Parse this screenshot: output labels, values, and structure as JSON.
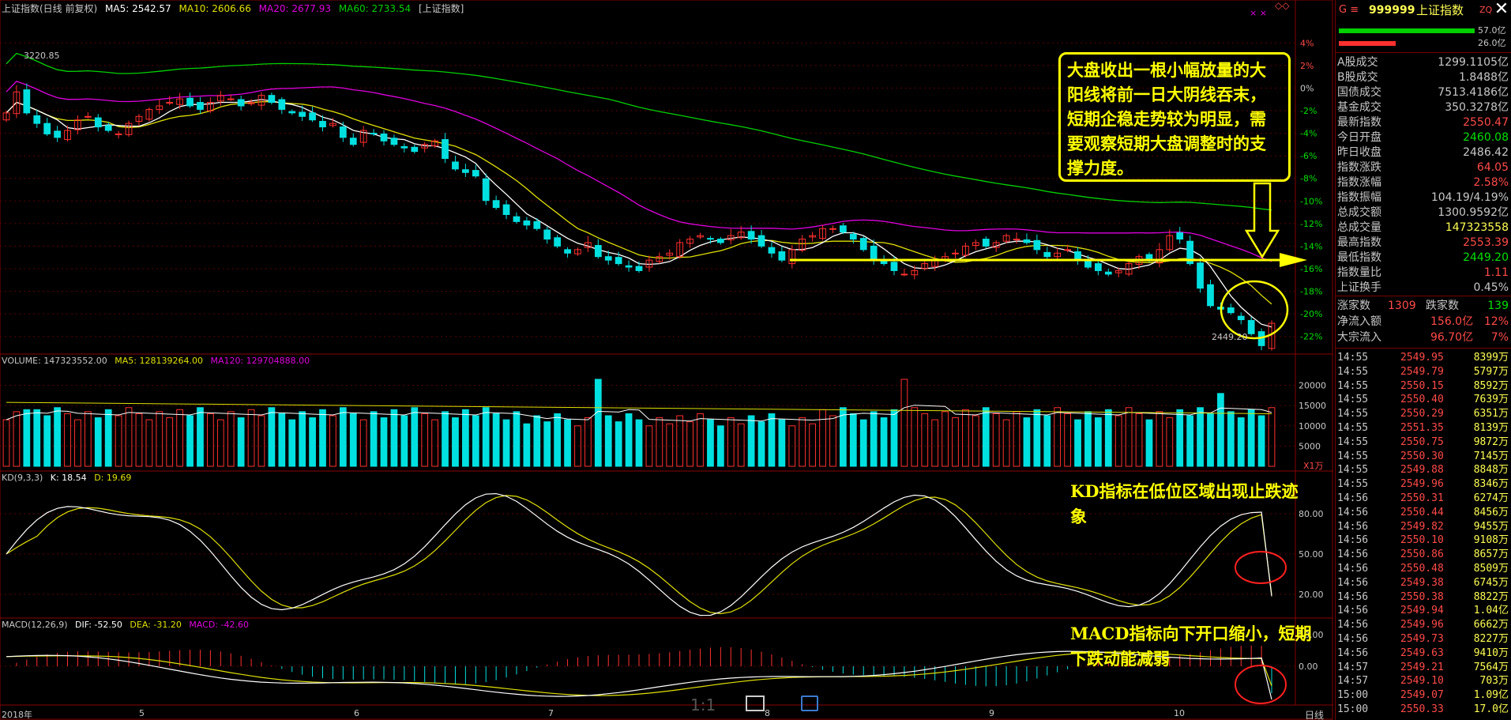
{
  "header": {
    "index_name": "上证指数(日线 前复权)",
    "ma5": "MA5: 2542.57",
    "ma10": "MA10: 2606.66",
    "ma20": "MA20: 2677.93",
    "ma60": "MA60: 2733.54",
    "tag": "[上证指数]",
    "top_left_value": "3220.85",
    "low_value": "2449.20"
  },
  "volume_header": {
    "volume": "VOLUME: 147323552.00",
    "ma5": "MA5: 128139264.00",
    "ma120": "MA120: 129704888.00",
    "unit": "X1万"
  },
  "kd_header": {
    "title": "KD(9,3,3)",
    "k": "K: 18.54",
    "d": "D: 19.69"
  },
  "macd_header": {
    "title": "MACD(12,26,9)",
    "dif": "DIF: -52.50",
    "dea": "DEA: -31.20",
    "macd": "MACD: -42.60"
  },
  "annotations": {
    "main": "大盘收出一根小幅放量的大阳线将前一日大阴线吞末，短期企稳走势较为明显，需要观察短期大盘调整时的支撑力度。",
    "kd": "KD指标在低位区域出现止跌迹象",
    "macd": "MACD指标向下开口缩小，短期下跌动能减弱"
  },
  "x_axis": {
    "labels": [
      "2018年",
      "5",
      "6",
      "7",
      "8",
      "9",
      "10"
    ],
    "period": "日线"
  },
  "bottom_icons": [
    "1:1",
    "fit-screen-icon",
    "settings-icon"
  ],
  "colors": {
    "up": "#ff3030",
    "down": "#00e0e0",
    "ma5": "#ffffff",
    "ma10": "#e0e000",
    "ma20": "#e000e0",
    "ma60": "#00d000",
    "highlight": "#ffff00"
  },
  "sidebar": {
    "code": "999999",
    "name": "上证指数",
    "top_label": "ZQ",
    "bar_vals": [
      "57.0亿",
      "26.0亿"
    ],
    "stats": [
      {
        "label": "A股成交",
        "value": "1299.1105亿",
        "color": "#c8c8c8"
      },
      {
        "label": "B股成交",
        "value": "1.8488亿",
        "color": "#c8c8c8"
      },
      {
        "label": "国债成交",
        "value": "7513.4186亿",
        "color": "#c8c8c8"
      },
      {
        "label": "基金成交",
        "value": "350.3278亿",
        "color": "#c8c8c8"
      },
      {
        "label": "最新指数",
        "value": "2550.47",
        "color": "#ff4a4a"
      },
      {
        "label": "今日开盘",
        "value": "2460.08",
        "color": "#00e000"
      },
      {
        "label": "昨日收盘",
        "value": "2486.42",
        "color": "#c8c8c8"
      },
      {
        "label": "指数涨跌",
        "value": "64.05",
        "color": "#ff4a4a"
      },
      {
        "label": "指数涨幅",
        "value": "2.58%",
        "color": "#ff4a4a"
      },
      {
        "label": "指数振幅",
        "value": "104.19/4.19%",
        "color": "#c8c8c8"
      },
      {
        "label": "总成交额",
        "value": "1300.9592亿",
        "color": "#c8c8c8"
      },
      {
        "label": "总成交量",
        "value": "147323558",
        "color": "#ffff55"
      },
      {
        "label": "最高指数",
        "value": "2553.39",
        "color": "#ff4a4a"
      },
      {
        "label": "最低指数",
        "value": "2449.20",
        "color": "#00e000"
      },
      {
        "label": "指数量比",
        "value": "1.11",
        "color": "#ff4a4a"
      },
      {
        "label": "上证换手",
        "value": "0.45%",
        "color": "#c8c8c8"
      }
    ],
    "up_down": {
      "up_label": "涨家数",
      "up_value": "1309",
      "down_label": "跌家数",
      "down_value": "139"
    },
    "flows": [
      {
        "label": "净流入额",
        "value": "156.0亿",
        "pct": "12%"
      },
      {
        "label": "大宗流入",
        "value": "96.70亿",
        "pct": "7%"
      }
    ],
    "ticks": [
      [
        "14:55",
        "2549.95",
        "8399万"
      ],
      [
        "14:55",
        "2549.79",
        "5797万"
      ],
      [
        "14:55",
        "2550.15",
        "8592万"
      ],
      [
        "14:55",
        "2550.40",
        "7639万"
      ],
      [
        "14:55",
        "2550.29",
        "6351万"
      ],
      [
        "14:55",
        "2551.35",
        "8139万"
      ],
      [
        "14:55",
        "2550.75",
        "9872万"
      ],
      [
        "14:55",
        "2550.30",
        "7145万"
      ],
      [
        "14:55",
        "2549.88",
        "8848万"
      ],
      [
        "14:55",
        "2549.96",
        "8346万"
      ],
      [
        "14:56",
        "2550.31",
        "6274万"
      ],
      [
        "14:56",
        "2550.44",
        "8456万"
      ],
      [
        "14:56",
        "2549.82",
        "9455万"
      ],
      [
        "14:56",
        "2550.10",
        "9108万"
      ],
      [
        "14:56",
        "2550.86",
        "8657万"
      ],
      [
        "14:56",
        "2550.48",
        "8509万"
      ],
      [
        "14:56",
        "2549.38",
        "6745万"
      ],
      [
        "14:56",
        "2550.38",
        "8822万"
      ],
      [
        "14:56",
        "2549.94",
        "1.04亿"
      ],
      [
        "14:56",
        "2549.96",
        "6662万"
      ],
      [
        "14:56",
        "2549.73",
        "8227万"
      ],
      [
        "14:56",
        "2549.63",
        "9410万"
      ],
      [
        "14:57",
        "2549.21",
        "7564万"
      ],
      [
        "14:57",
        "2549.10",
        "703万"
      ],
      [
        "15:00",
        "2549.07",
        "1.09亿"
      ],
      [
        "15:00",
        "2550.33",
        "17.0亿"
      ]
    ]
  },
  "chart_data": [
    {
      "type": "candlestick",
      "title": "上证指数(日线 前复权)",
      "y_axis_pct_ticks": [
        "4%",
        "2%",
        "0%",
        "-2%",
        "-4%",
        "-6%",
        "-8%",
        "-10%",
        "-12%",
        "-14%",
        "-16%",
        "-18%",
        "-20%",
        "-22%"
      ],
      "closes": [
        3150,
        3210,
        3150,
        3120,
        3090,
        3080,
        3100,
        3130,
        3140,
        3110,
        3100,
        3090,
        3120,
        3140,
        3160,
        3170,
        3180,
        3190,
        3170,
        3160,
        3180,
        3200,
        3190,
        3170,
        3180,
        3200,
        3180,
        3160,
        3150,
        3140,
        3130,
        3110,
        3120,
        3080,
        3060,
        3100,
        3090,
        3070,
        3060,
        3050,
        3040,
        3060,
        3070,
        3020,
        2990,
        2980,
        2970,
        2900,
        2880,
        2860,
        2840,
        2830,
        2820,
        2790,
        2770,
        2750,
        2760,
        2780,
        2740,
        2730,
        2720,
        2710,
        2700,
        2730,
        2740,
        2750,
        2780,
        2790,
        2800,
        2790,
        2780,
        2800,
        2810,
        2790,
        2770,
        2750,
        2730,
        2760,
        2790,
        2800,
        2820,
        2820,
        2810,
        2790,
        2760,
        2730,
        2720,
        2700,
        2690,
        2700,
        2720,
        2730,
        2740,
        2750,
        2770,
        2780,
        2770,
        2780,
        2800,
        2790,
        2780,
        2760,
        2740,
        2750,
        2760,
        2730,
        2710,
        2700,
        2690,
        2700,
        2720,
        2740,
        2730,
        2760,
        2800,
        2790,
        2720,
        2650,
        2600,
        2590,
        2580,
        2560,
        2520,
        2486,
        2550
      ],
      "ma_lines": [
        "MA5",
        "MA10",
        "MA20",
        "MA60"
      ]
    },
    {
      "type": "bar",
      "title": "VOLUME",
      "y_ticks": [
        20000,
        15000,
        10000,
        5000
      ],
      "unit": "X1万"
    },
    {
      "type": "line",
      "title": "KD(9,3,3)",
      "y_ticks": [
        80,
        50,
        20
      ],
      "series": [
        {
          "name": "K",
          "last": 18.54
        },
        {
          "name": "D",
          "last": 19.69
        }
      ]
    },
    {
      "type": "bar",
      "title": "MACD(12,26,9)",
      "y_ticks": [
        50,
        0
      ],
      "series": [
        {
          "name": "DIF",
          "last": -52.5
        },
        {
          "name": "DEA",
          "last": -31.2
        },
        {
          "name": "MACD",
          "last": -42.6
        }
      ]
    }
  ]
}
